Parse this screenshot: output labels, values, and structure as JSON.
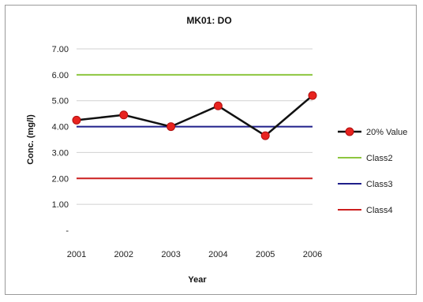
{
  "chart_data": {
    "type": "line",
    "title": "MK01: DO",
    "xlabel": "Year",
    "ylabel": "Conc. (mg/l)",
    "x": [
      "2001",
      "2002",
      "2003",
      "2004",
      "2005",
      "2006"
    ],
    "ylim": [
      0,
      7
    ],
    "yticks": [
      0,
      1,
      2,
      3,
      4,
      5,
      6,
      7
    ],
    "ytick_labels": [
      "-",
      "1.00",
      "2.00",
      "3.00",
      "4.00",
      "5.00",
      "6.00",
      "7.00"
    ],
    "grid": true,
    "legend_position": "right",
    "series": [
      {
        "name": "20% Value",
        "values": [
          4.25,
          4.45,
          4.0,
          4.8,
          3.65,
          5.2
        ],
        "color": "#111111",
        "marker_color": "#e8231f",
        "marker": "circle"
      },
      {
        "name": "Class2",
        "values": [
          6.0,
          6.0,
          6.0,
          6.0,
          6.0,
          6.0
        ],
        "color": "#8dc63f"
      },
      {
        "name": "Class3",
        "values": [
          4.0,
          4.0,
          4.0,
          4.0,
          4.0,
          4.0
        ],
        "color": "#1f1f8a"
      },
      {
        "name": "Class4",
        "values": [
          2.0,
          2.0,
          2.0,
          2.0,
          2.0,
          2.0
        ],
        "color": "#cc1f1f"
      }
    ]
  }
}
